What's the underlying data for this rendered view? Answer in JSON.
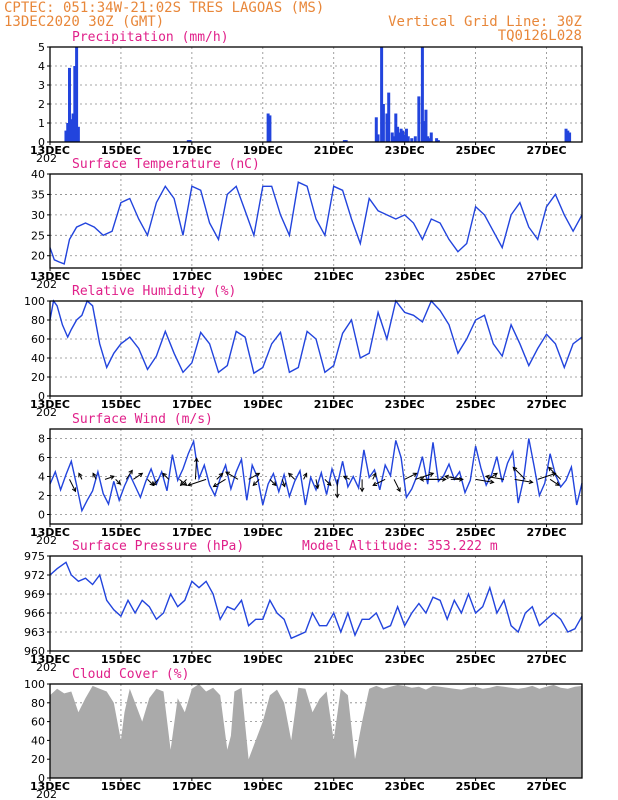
{
  "header": {
    "line1": "CPTEC:  051:34W-21:02S  TRES LAGOAS (MS)",
    "line2": "13DEC2020 30Z (GMT)",
    "grid_note": "Vertical Grid Line: 30Z",
    "code": "TQ0126L028"
  },
  "x_axis": {
    "day_start": 13,
    "day_end": 28,
    "tick_labels": [
      "13DEC",
      "15DEC",
      "17DEC",
      "19DEC",
      "21DEC",
      "23DEC",
      "25DEC",
      "27DEC"
    ],
    "tick_days": [
      13,
      15,
      17,
      19,
      21,
      23,
      25,
      27
    ],
    "year_stub": "202"
  },
  "colors": {
    "series": "#2244dd",
    "cloud": "#aaaaaa",
    "title": "#e0208a",
    "header": "#e8873a"
  },
  "chart_data": [
    {
      "id": "precip",
      "type": "bar",
      "title": "Precipitation (mm/h)",
      "ylim": [
        0,
        5
      ],
      "yticks": [
        0,
        1,
        2,
        3,
        4,
        5
      ],
      "x_days": [
        13.45,
        13.5,
        13.55,
        13.6,
        13.65,
        13.7,
        13.75,
        13.8,
        16.9,
        16.95,
        19.15,
        19.2,
        21.3,
        21.35,
        22.2,
        22.25,
        22.35,
        22.4,
        22.5,
        22.55,
        22.65,
        22.7,
        22.75,
        22.8,
        22.85,
        22.9,
        22.95,
        23.0,
        23.05,
        23.1,
        23.2,
        23.3,
        23.4,
        23.5,
        23.55,
        23.6,
        23.65,
        23.7,
        23.75,
        23.9,
        23.95,
        27.55,
        27.6,
        27.65
      ],
      "values": [
        0.6,
        1.0,
        3.9,
        1.2,
        1.5,
        4.0,
        5.0,
        0.8,
        0.1,
        0.1,
        1.5,
        1.4,
        0.1,
        0.1,
        1.3,
        0.4,
        5.0,
        2.0,
        1.5,
        2.6,
        0.5,
        0.3,
        1.5,
        0.8,
        0.5,
        0.7,
        0.6,
        0.4,
        0.7,
        0.3,
        0.2,
        0.3,
        2.4,
        5.0,
        1.1,
        1.7,
        0.3,
        0.2,
        0.5,
        0.2,
        0.1,
        0.7,
        0.6,
        0.5
      ]
    },
    {
      "id": "temp",
      "type": "line",
      "title": "Surface Temperature (nC)",
      "ylim": [
        17,
        40
      ],
      "yticks": [
        20,
        25,
        30,
        35,
        40
      ],
      "x_days": [
        13.0,
        13.12,
        13.25,
        13.4,
        13.55,
        13.75,
        14.0,
        14.25,
        14.5,
        14.75,
        15.0,
        15.25,
        15.5,
        15.75,
        16.0,
        16.25,
        16.5,
        16.75,
        17.0,
        17.25,
        17.5,
        17.75,
        18.0,
        18.25,
        18.5,
        18.75,
        19.0,
        19.25,
        19.5,
        19.75,
        20.0,
        20.25,
        20.5,
        20.75,
        21.0,
        21.25,
        21.5,
        21.75,
        22.0,
        22.25,
        22.5,
        22.75,
        23.0,
        23.25,
        23.5,
        23.75,
        24.0,
        24.25,
        24.5,
        24.75,
        25.0,
        25.25,
        25.5,
        25.75,
        26.0,
        26.25,
        26.5,
        26.75,
        27.0,
        27.25,
        27.5,
        27.75,
        28.0
      ],
      "values": [
        22,
        19,
        18.5,
        18,
        24,
        27,
        28,
        27,
        25,
        26,
        33,
        34,
        29,
        25,
        33,
        37,
        34,
        25,
        37,
        36,
        28,
        24,
        35,
        37,
        31,
        25,
        37,
        37,
        30,
        25,
        38,
        37,
        29,
        25,
        37,
        36,
        29,
        23,
        34,
        31,
        30,
        29,
        30,
        28,
        24,
        29,
        28,
        24,
        21,
        23,
        32,
        30,
        26,
        22,
        30,
        33,
        27,
        24,
        32,
        35,
        30,
        26,
        30
      ]
    },
    {
      "id": "rh",
      "type": "line",
      "title": "Relative Humidity (%)",
      "ylim": [
        0,
        100
      ],
      "yticks": [
        0,
        20,
        40,
        60,
        80,
        100
      ],
      "x_days": [
        13.0,
        13.1,
        13.2,
        13.35,
        13.5,
        13.6,
        13.75,
        13.9,
        14.05,
        14.2,
        14.4,
        14.6,
        14.8,
        15.0,
        15.25,
        15.5,
        15.75,
        16.0,
        16.25,
        16.5,
        16.75,
        17.0,
        17.25,
        17.5,
        17.75,
        18.0,
        18.25,
        18.5,
        18.75,
        19.0,
        19.25,
        19.5,
        19.75,
        20.0,
        20.25,
        20.5,
        20.75,
        21.0,
        21.25,
        21.5,
        21.75,
        22.0,
        22.25,
        22.5,
        22.75,
        23.0,
        23.25,
        23.5,
        23.75,
        24.0,
        24.25,
        24.5,
        24.75,
        25.0,
        25.25,
        25.5,
        25.75,
        26.0,
        26.25,
        26.5,
        26.75,
        27.0,
        27.25,
        27.5,
        27.75,
        28.0
      ],
      "values": [
        80,
        100,
        95,
        75,
        62,
        70,
        80,
        85,
        100,
        95,
        55,
        30,
        45,
        55,
        62,
        50,
        28,
        42,
        68,
        45,
        25,
        35,
        67,
        55,
        25,
        32,
        68,
        62,
        24,
        30,
        55,
        67,
        25,
        30,
        68,
        60,
        25,
        32,
        66,
        80,
        40,
        45,
        88,
        60,
        100,
        88,
        85,
        78,
        100,
        90,
        75,
        45,
        60,
        80,
        85,
        55,
        42,
        75,
        55,
        32,
        50,
        65,
        55,
        30,
        55,
        62
      ]
    },
    {
      "id": "wind",
      "type": "line",
      "title": "Surface Wind (m/s)",
      "ylim": [
        -1,
        9
      ],
      "yticks": [
        0,
        2,
        4,
        6,
        8
      ],
      "x_days": [
        13.0,
        13.15,
        13.3,
        13.45,
        13.6,
        13.75,
        13.9,
        14.05,
        14.2,
        14.35,
        14.5,
        14.65,
        14.8,
        14.95,
        15.1,
        15.25,
        15.4,
        15.55,
        15.7,
        15.85,
        16.0,
        16.15,
        16.3,
        16.45,
        16.6,
        16.75,
        16.9,
        17.05,
        17.2,
        17.35,
        17.5,
        17.65,
        17.8,
        17.95,
        18.1,
        18.25,
        18.4,
        18.55,
        18.7,
        18.85,
        19.0,
        19.15,
        19.3,
        19.45,
        19.6,
        19.75,
        19.9,
        20.05,
        20.2,
        20.35,
        20.5,
        20.65,
        20.8,
        20.95,
        21.1,
        21.25,
        21.4,
        21.55,
        21.7,
        21.85,
        22.0,
        22.15,
        22.3,
        22.45,
        22.6,
        22.75,
        22.9,
        23.05,
        23.2,
        23.35,
        23.5,
        23.65,
        23.8,
        23.95,
        24.1,
        24.25,
        24.4,
        24.55,
        24.7,
        24.85,
        25.0,
        25.15,
        25.3,
        25.45,
        25.6,
        25.75,
        25.9,
        26.05,
        26.2,
        26.35,
        26.5,
        26.65,
        26.8,
        26.95,
        27.1,
        27.25,
        27.4,
        27.55,
        27.7,
        27.85,
        28.0
      ],
      "values": [
        3.2,
        4.5,
        2.6,
        4.2,
        5.6,
        3.1,
        0.4,
        1.5,
        2.5,
        4.5,
        2.2,
        1.1,
        3.5,
        1.5,
        3.0,
        4.2,
        3.0,
        1.8,
        3.5,
        4.8,
        3.2,
        4.5,
        2.5,
        6.3,
        3.6,
        4.8,
        6.4,
        7.7,
        3.8,
        5.2,
        3.1,
        2.0,
        3.8,
        5.2,
        2.7,
        4.5,
        5.8,
        1.5,
        5.2,
        3.9,
        1.0,
        3.2,
        4.3,
        2.4,
        4.2,
        1.9,
        3.5,
        4.6,
        1.0,
        3.9,
        2.6,
        4.4,
        2.1,
        4.8,
        3.1,
        5.6,
        2.9,
        4.0,
        2.8,
        6.8,
        3.9,
        4.7,
        2.6,
        5.2,
        4.1,
        7.8,
        6.0,
        1.8,
        2.7,
        4.1,
        6.1,
        3.2,
        7.6,
        3.5,
        4.1,
        5.3,
        3.7,
        4.5,
        2.3,
        3.6,
        7.2,
        4.9,
        3.1,
        4.2,
        6.1,
        3.4,
        5.4,
        6.6,
        1.2,
        3.7,
        8.0,
        5.1,
        2.0,
        3.3,
        6.4,
        4.2,
        2.9,
        3.6,
        5.0,
        1.0,
        3.3
      ]
    },
    {
      "id": "pressure",
      "type": "line",
      "title": "Surface Pressure (hPa)",
      "ylim": [
        960,
        975
      ],
      "yticks": [
        960,
        963,
        966,
        969,
        972,
        975
      ],
      "x_days": [
        13.0,
        13.2,
        13.45,
        13.6,
        13.8,
        14.0,
        14.2,
        14.4,
        14.6,
        14.8,
        15.0,
        15.2,
        15.4,
        15.6,
        15.8,
        16.0,
        16.2,
        16.4,
        16.6,
        16.8,
        17.0,
        17.2,
        17.4,
        17.6,
        17.8,
        18.0,
        18.2,
        18.4,
        18.6,
        18.8,
        19.0,
        19.2,
        19.4,
        19.6,
        19.8,
        20.0,
        20.2,
        20.4,
        20.6,
        20.8,
        21.0,
        21.2,
        21.4,
        21.6,
        21.8,
        22.0,
        22.2,
        22.4,
        22.6,
        22.8,
        23.0,
        23.2,
        23.4,
        23.6,
        23.8,
        24.0,
        24.2,
        24.4,
        24.6,
        24.8,
        25.0,
        25.2,
        25.4,
        25.6,
        25.8,
        26.0,
        26.2,
        26.4,
        26.6,
        26.8,
        27.0,
        27.2,
        27.4,
        27.6,
        27.8,
        28.0
      ],
      "values": [
        972,
        973,
        974,
        972,
        971,
        971.5,
        970.5,
        972,
        968,
        966.5,
        965.5,
        968,
        966,
        968,
        967,
        965,
        966,
        969,
        967,
        968,
        971,
        970,
        971,
        969,
        965,
        967,
        966.5,
        968,
        964,
        965,
        965,
        968,
        966,
        965,
        962,
        962.5,
        963,
        966,
        964,
        964,
        966,
        963,
        966,
        962.5,
        965,
        965,
        966,
        963.5,
        964,
        967,
        964,
        966,
        967.5,
        966,
        968.5,
        968,
        965,
        968,
        966,
        969,
        966,
        967,
        970,
        966,
        968,
        964,
        963,
        966,
        967,
        964,
        965,
        966,
        965,
        963,
        963.5,
        965.5
      ]
    },
    {
      "id": "cloud",
      "type": "area",
      "title": "Cloud Cover (%)",
      "ylim": [
        0,
        100
      ],
      "yticks": [
        0,
        20,
        40,
        60,
        80,
        100
      ],
      "x_days": [
        13.0,
        13.2,
        13.4,
        13.6,
        13.8,
        14.0,
        14.2,
        14.4,
        14.6,
        14.8,
        15.0,
        15.1,
        15.25,
        15.4,
        15.6,
        15.8,
        16.0,
        16.2,
        16.4,
        16.6,
        16.8,
        17.0,
        17.2,
        17.4,
        17.6,
        17.8,
        18.0,
        18.1,
        18.2,
        18.4,
        18.6,
        18.8,
        19.0,
        19.2,
        19.4,
        19.6,
        19.8,
        20.0,
        20.2,
        20.4,
        20.6,
        20.8,
        21.0,
        21.2,
        21.4,
        21.6,
        21.8,
        22.0,
        22.2,
        22.4,
        22.6,
        22.8,
        23.0,
        23.2,
        23.4,
        23.6,
        23.8,
        24.0,
        24.2,
        24.4,
        24.6,
        24.8,
        25.0,
        25.2,
        25.4,
        25.6,
        25.8,
        26.0,
        26.2,
        26.4,
        26.6,
        26.8,
        27.0,
        27.2,
        27.4,
        27.6,
        27.8,
        28.0
      ],
      "values": [
        88,
        95,
        90,
        92,
        70,
        85,
        98,
        95,
        92,
        80,
        40,
        70,
        95,
        80,
        60,
        85,
        95,
        92,
        30,
        85,
        70,
        95,
        100,
        92,
        96,
        88,
        30,
        45,
        92,
        96,
        20,
        40,
        60,
        88,
        94,
        80,
        40,
        96,
        95,
        70,
        84,
        92,
        40,
        95,
        88,
        20,
        60,
        95,
        98,
        95,
        97,
        99,
        98,
        96,
        97,
        94,
        98,
        97,
        96,
        95,
        94,
        96,
        97,
        95,
        96,
        98,
        97,
        96,
        95,
        96,
        98,
        95,
        97,
        99,
        96,
        95,
        97,
        98
      ]
    }
  ],
  "wind_vectors": {
    "x_days": [
      13.55,
      13.9,
      14.3,
      14.55,
      14.85,
      15.15,
      15.35,
      15.75,
      16.05,
      16.35,
      16.65,
      16.85,
      17.1,
      17.4,
      17.7,
      17.95,
      18.3,
      18.6,
      18.9,
      19.2,
      19.55,
      19.9,
      20.15,
      20.5,
      20.75,
      21.1,
      21.45,
      21.8,
      22.1,
      22.45,
      22.7,
      23.0,
      23.3,
      23.65,
      23.95,
      24.3,
      24.65,
      25.0,
      25.35,
      25.8,
      26.1,
      26.4,
      26.75,
      27.1,
      27.4
    ],
    "u": [
      1.0,
      -0.5,
      -0.5,
      1.5,
      0.8,
      1.0,
      1.5,
      1.0,
      -0.8,
      -1.0,
      1.2,
      -1.0,
      0.2,
      -3.0,
      1.0,
      -2.0,
      -2.0,
      1.8,
      -1.0,
      1.0,
      0.4,
      -1.0,
      0.5,
      0.3,
      1.0,
      0.0,
      -1.0,
      0.0,
      0.5,
      -2.0,
      1.0,
      2.0,
      3.0,
      3.0,
      -3.0,
      2.0,
      -3.0,
      3.0,
      1.5,
      -3.0,
      3.0,
      -2.0,
      3.0,
      1.5,
      -2.0
    ],
    "v": [
      -2.0,
      1.0,
      1.0,
      0.5,
      -0.8,
      1.5,
      1.0,
      -1.0,
      -1.0,
      1.0,
      -1.0,
      -1.0,
      3.5,
      -1.0,
      1.0,
      -1.2,
      1.2,
      1.0,
      -1.0,
      -1.0,
      -1.2,
      1.0,
      1.0,
      -1.5,
      -1.0,
      -3.0,
      0.5,
      -2.0,
      1.0,
      -1.0,
      -2.0,
      1.0,
      1.0,
      0.0,
      0.0,
      0.0,
      0.5,
      -0.5,
      1.0,
      0.5,
      -0.5,
      2.0,
      1.0,
      -1.0,
      2.0
    ]
  },
  "annotations": {
    "model_altitude": "Model Altitude: 353.222 m"
  }
}
